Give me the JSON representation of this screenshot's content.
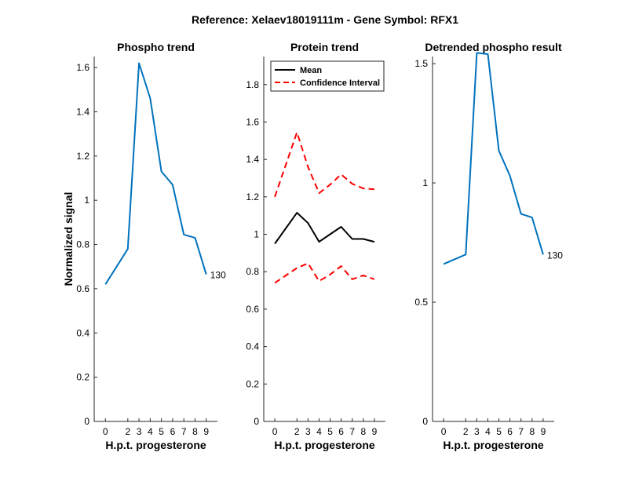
{
  "figure": {
    "suptitle": "Reference:  Xelaev18019111m - Gene Symbol:  RFX1"
  },
  "colors": {
    "blue": "#0072BD",
    "black": "#000000",
    "red": "#FF0000"
  },
  "chart_data": [
    {
      "type": "line",
      "title": "Phospho trend",
      "xlabel": "H.p.t. progesterone",
      "ylabel": "Normalized signal",
      "x": [
        0,
        2,
        3,
        4,
        5,
        6,
        7,
        8,
        9
      ],
      "xlim": [
        -1,
        10
      ],
      "ylim": [
        0,
        1.65
      ],
      "yticks": [
        0,
        0.2,
        0.4,
        0.6,
        0.8,
        1,
        1.2,
        1.4,
        1.6
      ],
      "series": [
        {
          "values": [
            0.62,
            0.78,
            1.62,
            1.46,
            1.13,
            1.07,
            0.845,
            0.83,
            0.665
          ],
          "color": "blue",
          "style": "solid"
        }
      ],
      "end_label": "130",
      "grid": false
    },
    {
      "type": "line",
      "title": "Protein trend",
      "xlabel": "H.p.t. progesterone",
      "x": [
        0,
        2,
        3,
        4,
        5,
        6,
        7,
        8,
        9
      ],
      "xlim": [
        -1,
        10
      ],
      "ylim": [
        0,
        1.95
      ],
      "yticks": [
        0,
        0.2,
        0.4,
        0.6,
        0.8,
        1,
        1.2,
        1.4,
        1.6,
        1.8
      ],
      "series": [
        {
          "name": "Mean",
          "values": [
            0.95,
            1.115,
            1.06,
            0.96,
            1.0,
            1.04,
            0.975,
            0.975,
            0.96
          ],
          "color": "black",
          "style": "solid"
        },
        {
          "name": "Confidence Interval",
          "values": [
            1.2,
            1.545,
            1.36,
            1.22,
            1.265,
            1.32,
            1.27,
            1.245,
            1.24
          ],
          "color": "red",
          "style": "dashed"
        },
        {
          "values": [
            0.74,
            0.82,
            0.845,
            0.75,
            0.785,
            0.83,
            0.76,
            0.78,
            0.76
          ],
          "color": "red",
          "style": "dashed"
        }
      ],
      "legend": {
        "position": "top-left",
        "entries": [
          "Mean",
          "Confidence Interval"
        ]
      },
      "grid": false
    },
    {
      "type": "line",
      "title": "Detrended phospho result",
      "xlabel": "H.p.t. progesterone",
      "x": [
        0,
        2,
        3,
        4,
        5,
        6,
        7,
        8,
        9
      ],
      "xlim": [
        -1,
        10
      ],
      "ylim": [
        0,
        1.53
      ],
      "yticks": [
        0,
        0.5,
        1,
        1.5
      ],
      "series": [
        {
          "values": [
            0.66,
            0.7,
            1.545,
            1.54,
            1.135,
            1.03,
            0.87,
            0.855,
            0.7
          ],
          "color": "blue",
          "style": "solid"
        }
      ],
      "end_label": "130",
      "grid": false
    }
  ]
}
